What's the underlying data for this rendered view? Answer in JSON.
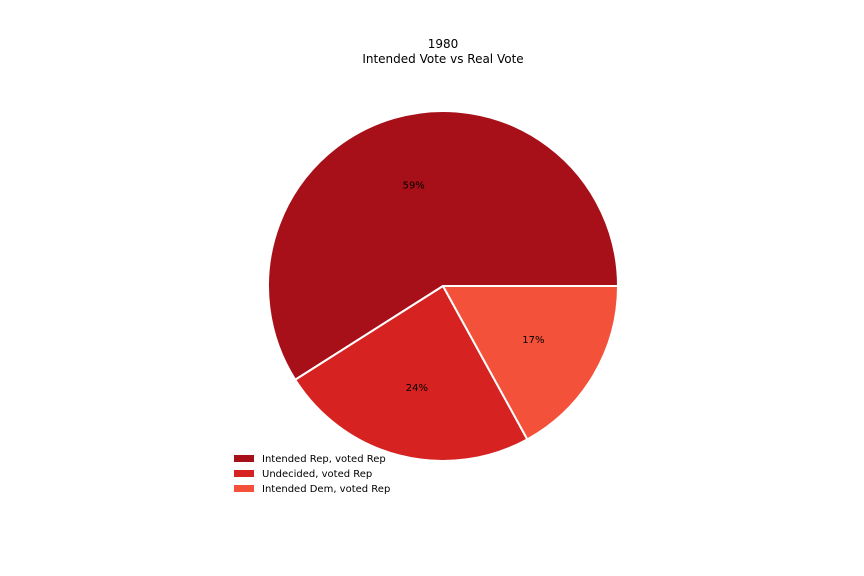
{
  "chart_data": {
    "type": "pie",
    "title_lines": [
      "1980",
      "Intended Vote vs Real Vote"
    ],
    "slices": [
      {
        "label": "Intended Rep, voted Rep",
        "value": 59,
        "pct_label": "59%",
        "color": "#a81019"
      },
      {
        "label": "Undecided, voted Rep",
        "value": 24,
        "pct_label": "24%",
        "color": "#d62221"
      },
      {
        "label": "Intended Dem, voted Rep",
        "value": 17,
        "pct_label": "17%",
        "color": "#f4513a"
      }
    ],
    "start_angle_deg": 0,
    "direction": "counterclockwise",
    "legend_position": "lower-left",
    "wedge_edge_color": "#ffffff"
  }
}
